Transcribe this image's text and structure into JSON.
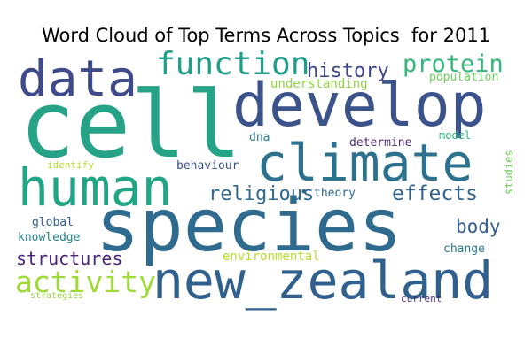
{
  "title": "Word Cloud of Top Terms Across Topics  for 2011",
  "words": [
    {
      "text": "cell",
      "color": "#26a387"
    },
    {
      "text": "species",
      "color": "#2f6b8e"
    },
    {
      "text": "develop",
      "color": "#3b528b"
    },
    {
      "text": "new_zealand",
      "color": "#30608d"
    },
    {
      "text": "human",
      "color": "#20a585"
    },
    {
      "text": "climate",
      "color": "#2c718e"
    },
    {
      "text": "data",
      "color": "#3e4a89"
    },
    {
      "text": "function",
      "color": "#1f9e89"
    },
    {
      "text": "activity",
      "color": "#a0da39"
    },
    {
      "text": "protein",
      "color": "#35b779"
    },
    {
      "text": "history",
      "color": "#3f4788"
    },
    {
      "text": "religious",
      "color": "#31688e"
    },
    {
      "text": "effects",
      "color": "#33638d"
    },
    {
      "text": "structures",
      "color": "#482576"
    },
    {
      "text": "body",
      "color": "#365c8d"
    },
    {
      "text": "environmental",
      "color": "#b5de2b"
    },
    {
      "text": "understanding",
      "color": "#8fd744"
    },
    {
      "text": "population",
      "color": "#6ccd5a"
    },
    {
      "text": "determine",
      "color": "#472d7b"
    },
    {
      "text": "behaviour",
      "color": "#3b528b"
    },
    {
      "text": "theory",
      "color": "#31688e"
    },
    {
      "text": "global",
      "color": "#355f8d"
    },
    {
      "text": "knowledge",
      "color": "#25848e"
    },
    {
      "text": "change",
      "color": "#2a788e"
    },
    {
      "text": "dna",
      "color": "#2a788e"
    },
    {
      "text": "model",
      "color": "#2fb47c"
    },
    {
      "text": "identify",
      "color": "#b5de2b"
    },
    {
      "text": "studies",
      "color": "#6ece58"
    },
    {
      "text": "strategies",
      "color": "#95d840"
    },
    {
      "text": "current",
      "color": "#46337e"
    },
    {
      "text": "•",
      "color": "#31688e"
    }
  ]
}
